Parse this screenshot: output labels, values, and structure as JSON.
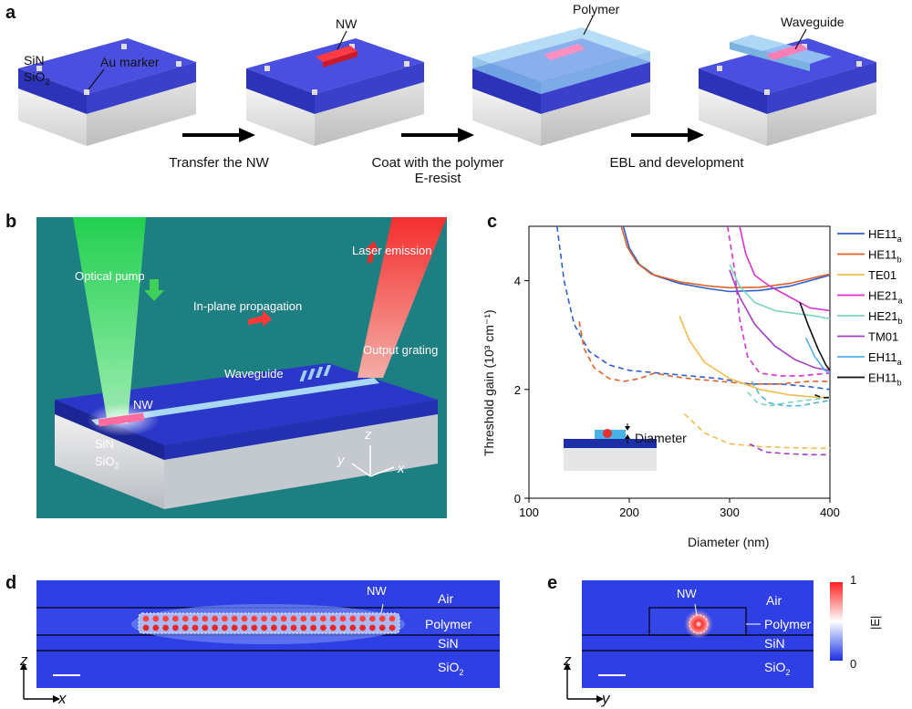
{
  "panel_a": {
    "label": "a",
    "annot_sin": "SiN",
    "annot_sio2": "SiO",
    "annot_sio2_sub": "2",
    "annot_marker": "Au marker",
    "annot_nw": "NW",
    "annot_polymer": "Polymer",
    "annot_waveguide": "Waveguide",
    "step1": "Transfer the NW",
    "step2_line1": "Coat with the polymer",
    "step2_line2": "E-resist",
    "step3": "EBL and development",
    "colors": {
      "sin": "#3a45d8",
      "sio2": "#e4e4e4",
      "nw": "#e8283a",
      "polymer": "#8fc6ee"
    }
  },
  "panel_b": {
    "label": "b",
    "optical_pump": "Optical pump",
    "laser_emission": "Laser emission",
    "inplane": "In-plane propagation",
    "output_grating": "Output grating",
    "waveguide": "Waveguide",
    "nw": "NW",
    "sin": "SiN",
    "sio2": "SiO",
    "sio2_sub": "2",
    "axis_z": "z",
    "axis_y": "y",
    "axis_x": "x",
    "colors": {
      "background": "#1e7f83",
      "pump": "#2dd85a",
      "emission": "#ff3a3a"
    }
  },
  "panel_c": {
    "label": "c",
    "inset_label": "Diameter",
    "chart_data": {
      "type": "line",
      "xlabel": "Diameter (nm)",
      "ylabel": "Threshold gain (10³ cm⁻¹)",
      "xlim": [
        100,
        400
      ],
      "ylim": [
        0,
        5
      ],
      "xticks": [
        "100",
        "200",
        "300",
        "400"
      ],
      "yticks": [
        "0",
        "2",
        "4"
      ],
      "legend_position": "right",
      "legend": [
        {
          "name": "HE11",
          "sub": "a",
          "color": "#2f5fcf"
        },
        {
          "name": "HE11",
          "sub": "b",
          "color": "#e0622a"
        },
        {
          "name": "TE01",
          "sub": "",
          "color": "#f2bd4e"
        },
        {
          "name": "HE21",
          "sub": "a",
          "color": "#d934d1"
        },
        {
          "name": "HE21",
          "sub": "b",
          "color": "#79d7bf"
        },
        {
          "name": "TM01",
          "sub": "",
          "color": "#a43fc6"
        },
        {
          "name": "EH11",
          "sub": "a",
          "color": "#4fb2e6"
        },
        {
          "name": "EH11",
          "sub": "b",
          "color": "#111111"
        }
      ],
      "series": [
        {
          "key": "HE11a_solid",
          "color": "#2f5fcf",
          "dash": false,
          "points": [
            [
              194,
              5
            ],
            [
              200,
              4.6
            ],
            [
              210,
              4.3
            ],
            [
              225,
              4.1
            ],
            [
              250,
              3.95
            ],
            [
              280,
              3.85
            ],
            [
              300,
              3.8
            ],
            [
              330,
              3.82
            ],
            [
              360,
              3.9
            ],
            [
              390,
              4.05
            ],
            [
              400,
              4.1
            ]
          ]
        },
        {
          "key": "HE11b_solid",
          "color": "#e0622a",
          "dash": false,
          "points": [
            [
              192,
              5
            ],
            [
              198,
              4.62
            ],
            [
              208,
              4.32
            ],
            [
              222,
              4.12
            ],
            [
              250,
              3.98
            ],
            [
              280,
              3.9
            ],
            [
              300,
              3.87
            ],
            [
              330,
              3.88
            ],
            [
              360,
              3.95
            ],
            [
              390,
              4.08
            ],
            [
              400,
              4.12
            ]
          ]
        },
        {
          "key": "HE11a_dashed",
          "color": "#2f5fcf",
          "dash": true,
          "points": [
            [
              128,
              5
            ],
            [
              135,
              4
            ],
            [
              145,
              3.2
            ],
            [
              160,
              2.7
            ],
            [
              180,
              2.45
            ],
            [
              200,
              2.35
            ],
            [
              230,
              2.3
            ],
            [
              260,
              2.25
            ],
            [
              290,
              2.2
            ],
            [
              320,
              2.1
            ],
            [
              350,
              2.1
            ],
            [
              380,
              2.05
            ],
            [
              400,
              2.0
            ]
          ]
        },
        {
          "key": "HE11b_dashed",
          "color": "#e0622a",
          "dash": true,
          "points": [
            [
              150,
              3.25
            ],
            [
              155,
              2.75
            ],
            [
              165,
              2.4
            ],
            [
              180,
              2.2
            ],
            [
              195,
              2.15
            ],
            [
              210,
              2.2
            ],
            [
              225,
              2.3
            ],
            [
              240,
              2.25
            ],
            [
              260,
              2.2
            ],
            [
              290,
              2.15
            ],
            [
              320,
              2.1
            ],
            [
              350,
              2.1
            ],
            [
              380,
              2.15
            ],
            [
              400,
              2.15
            ]
          ]
        },
        {
          "key": "TE01_solid",
          "color": "#f2bd4e",
          "dash": false,
          "points": [
            [
              250,
              3.35
            ],
            [
              260,
              2.9
            ],
            [
              275,
              2.5
            ],
            [
              300,
              2.2
            ],
            [
              330,
              2.0
            ],
            [
              360,
              1.9
            ],
            [
              390,
              1.85
            ],
            [
              400,
              1.85
            ]
          ]
        },
        {
          "key": "TE01_dashed",
          "color": "#f2bd4e",
          "dash": true,
          "points": [
            [
              255,
              1.55
            ],
            [
              275,
              1.2
            ],
            [
              300,
              1.0
            ],
            [
              330,
              0.95
            ],
            [
              360,
              0.93
            ],
            [
              390,
              0.92
            ],
            [
              400,
              0.92
            ]
          ]
        },
        {
          "key": "HE21a_solid",
          "color": "#d934d1",
          "dash": false,
          "points": [
            [
              310,
              5
            ],
            [
              316,
              4.5
            ],
            [
              325,
              4.1
            ],
            [
              340,
              3.9
            ],
            [
              360,
              3.7
            ],
            [
              380,
              3.5
            ],
            [
              400,
              3.45
            ]
          ]
        },
        {
          "key": "HE21a_dashed",
          "color": "#d934d1",
          "dash": true,
          "points": [
            [
              298,
              5
            ],
            [
              305,
              4.2
            ],
            [
              310,
              3.3
            ],
            [
              318,
              2.6
            ],
            [
              330,
              2.3
            ],
            [
              350,
              2.25
            ],
            [
              370,
              2.25
            ],
            [
              400,
              2.3
            ]
          ]
        },
        {
          "key": "HE21b_solid",
          "color": "#79d7bf",
          "dash": false,
          "points": [
            [
              300,
              4.3
            ],
            [
              310,
              3.9
            ],
            [
              325,
              3.6
            ],
            [
              345,
              3.45
            ],
            [
              365,
              3.4
            ],
            [
              385,
              3.35
            ],
            [
              400,
              3.3
            ]
          ]
        },
        {
          "key": "HE21b_dashed",
          "color": "#79d7bf",
          "dash": true,
          "points": [
            [
              318,
              1.95
            ],
            [
              328,
              1.75
            ],
            [
              340,
              1.7
            ],
            [
              355,
              1.75
            ],
            [
              375,
              1.8
            ],
            [
              400,
              1.85
            ]
          ]
        },
        {
          "key": "TM01_solid",
          "color": "#a43fc6",
          "dash": false,
          "points": [
            [
              300,
              4.2
            ],
            [
              310,
              3.7
            ],
            [
              325,
              3.2
            ],
            [
              345,
              2.8
            ],
            [
              365,
              2.55
            ],
            [
              385,
              2.4
            ],
            [
              400,
              2.35
            ]
          ]
        },
        {
          "key": "TM01_dashed",
          "color": "#a43fc6",
          "dash": true,
          "points": [
            [
              320,
              1.0
            ],
            [
              335,
              0.85
            ],
            [
              355,
              0.82
            ],
            [
              380,
              0.8
            ],
            [
              400,
              0.8
            ]
          ]
        },
        {
          "key": "EH11a_solid",
          "color": "#4fb2e6",
          "dash": false,
          "points": [
            [
              376,
              2.95
            ],
            [
              385,
              2.6
            ],
            [
              395,
              2.35
            ],
            [
              400,
              2.3
            ]
          ]
        },
        {
          "key": "EH11a_dashed",
          "color": "#4fb2e6",
          "dash": true,
          "points": [
            [
              322,
              2.15
            ],
            [
              330,
              1.9
            ],
            [
              340,
              1.75
            ],
            [
              355,
              1.7
            ],
            [
              370,
              1.7
            ],
            [
              385,
              1.75
            ],
            [
              400,
              1.8
            ]
          ]
        },
        {
          "key": "EH11b_solid",
          "color": "#111111",
          "dash": false,
          "points": [
            [
              370,
              3.6
            ],
            [
              378,
              3.2
            ],
            [
              388,
              2.75
            ],
            [
              396,
              2.45
            ],
            [
              400,
              2.35
            ]
          ]
        },
        {
          "key": "EH11b_dashed",
          "color": "#111111",
          "dash": true,
          "points": [
            [
              385,
              1.9
            ],
            [
              392,
              1.85
            ],
            [
              400,
              1.85
            ]
          ]
        }
      ]
    }
  },
  "panel_d": {
    "label": "d",
    "nw": "NW",
    "air": "Air",
    "polymer": "Polymer",
    "sin": "SiN",
    "sio2": "SiO",
    "sio2_sub": "2",
    "axis_z": "z",
    "axis_x": "x"
  },
  "panel_e": {
    "label": "e",
    "nw": "NW",
    "air": "Air",
    "polymer": "Polymer",
    "sin": "SiN",
    "sio2": "SiO",
    "sio2_sub": "2",
    "axis_z": "z",
    "axis_y": "y",
    "colorbar_max": "1",
    "colorbar_min": "0",
    "colorbar_label": "|E|"
  }
}
